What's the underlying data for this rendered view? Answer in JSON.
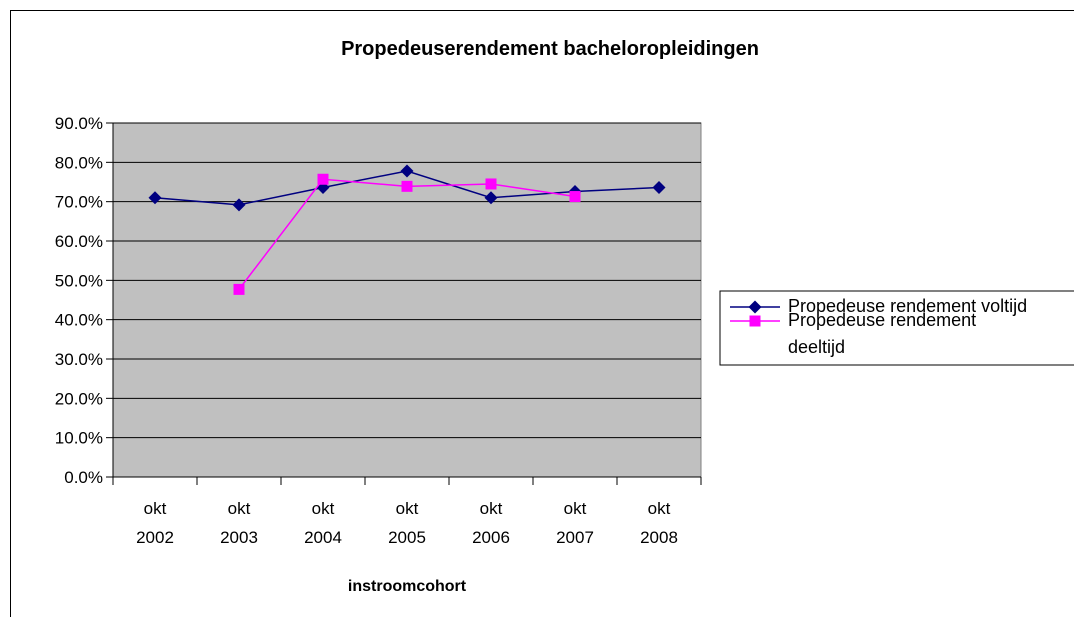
{
  "chart_data": {
    "type": "line",
    "title": "Propedeuserendement bacheloropleidingen",
    "x_label": "instroomcohort",
    "categories": [
      "okt 2002",
      "okt 2003",
      "okt 2004",
      "okt 2005",
      "okt 2006",
      "okt 2007",
      "okt 2008"
    ],
    "series": [
      {
        "name": "Propedeuse rendement voltijd",
        "color": "#000080",
        "marker": "diamond",
        "values": [
          71.0,
          69.2,
          73.6,
          77.8,
          71.0,
          72.6,
          73.6
        ]
      },
      {
        "name": "Propedeuse rendement deeltijd",
        "color": "#ff00ff",
        "marker": "square",
        "values": [
          null,
          47.7,
          75.7,
          73.9,
          74.5,
          71.3,
          null
        ]
      }
    ],
    "ylim": [
      0,
      90
    ],
    "yticks": [
      {
        "value": 0,
        "label": "0.0%"
      },
      {
        "value": 10,
        "label": "10.0%"
      },
      {
        "value": 20,
        "label": "20.0%"
      },
      {
        "value": 30,
        "label": "30.0%"
      },
      {
        "value": 40,
        "label": "40.0%"
      },
      {
        "value": 50,
        "label": "50.0%"
      },
      {
        "value": 60,
        "label": "60.0%"
      },
      {
        "value": 70,
        "label": "70.0%"
      },
      {
        "value": 80,
        "label": "80.0%"
      },
      {
        "value": 90,
        "label": "90.0%"
      }
    ],
    "grid": true,
    "legend": "right"
  }
}
